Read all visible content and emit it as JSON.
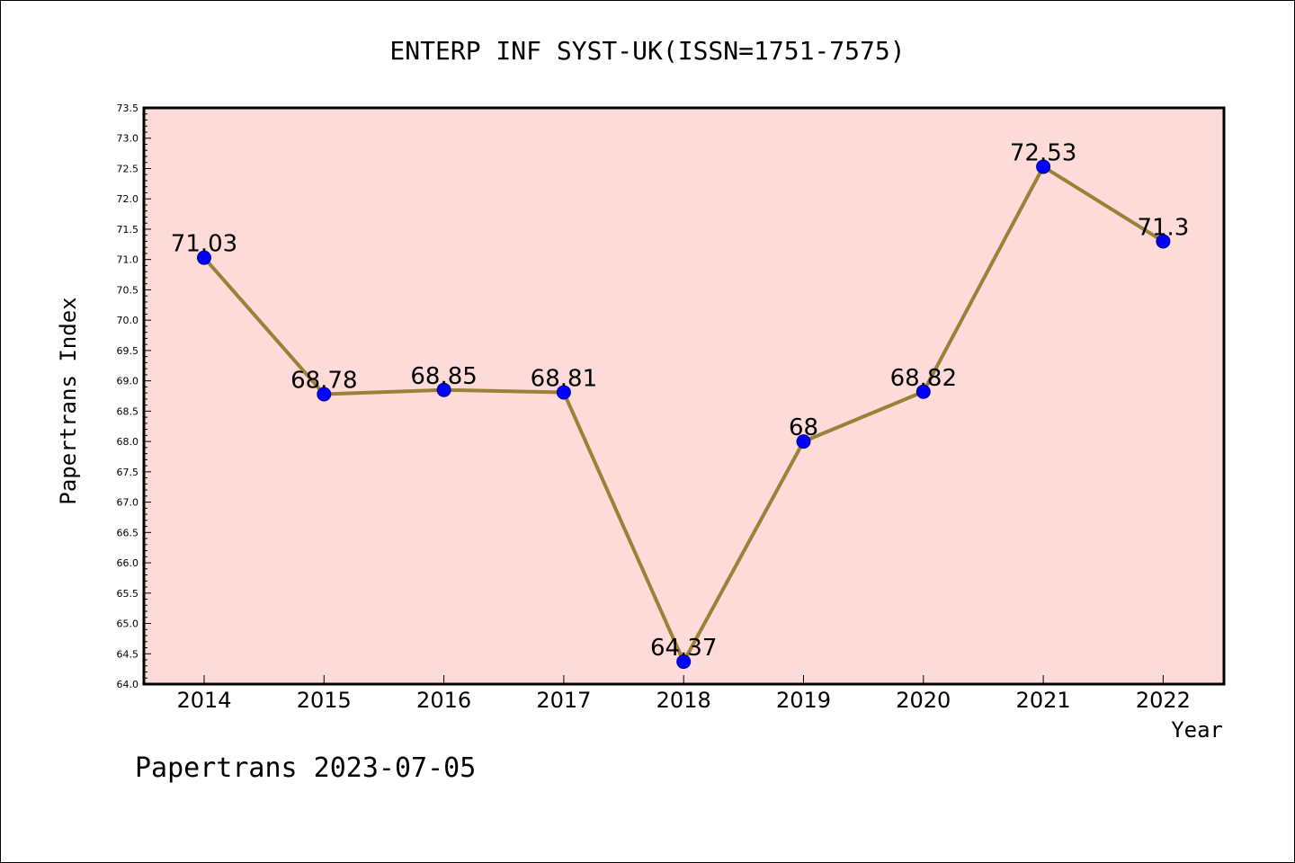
{
  "chart_data": {
    "type": "line",
    "title": "ENTERP INF SYST-UK(ISSN=1751-7575)",
    "xlabel": "Year",
    "ylabel": "Papertrans Index",
    "categories": [
      "2014",
      "2015",
      "2016",
      "2017",
      "2018",
      "2019",
      "2020",
      "2021",
      "2022"
    ],
    "series": [
      {
        "values": [
          71.03,
          68.78,
          68.85,
          68.81,
          64.37,
          68,
          68.82,
          72.53,
          71.3
        ],
        "labels": [
          "71.03",
          "68.78",
          "68.85",
          "68.81",
          "64.37",
          "68",
          "68.82",
          "72.53",
          "71.3"
        ],
        "line_color": "#9b8038",
        "marker_color": "#0000ff"
      }
    ],
    "ylim": [
      64.0,
      73.5
    ],
    "yticks": [
      "64.0",
      "64.5",
      "65.0",
      "65.5",
      "66.0",
      "66.5",
      "67.0",
      "67.5",
      "68.0",
      "68.5",
      "69.0",
      "69.5",
      "70.0",
      "70.5",
      "71.0",
      "71.5",
      "72.0",
      "72.5",
      "73.0",
      "73.5"
    ],
    "plot_background": "#fddbd8",
    "grid": false,
    "footer": "Papertrans 2023-07-05"
  }
}
